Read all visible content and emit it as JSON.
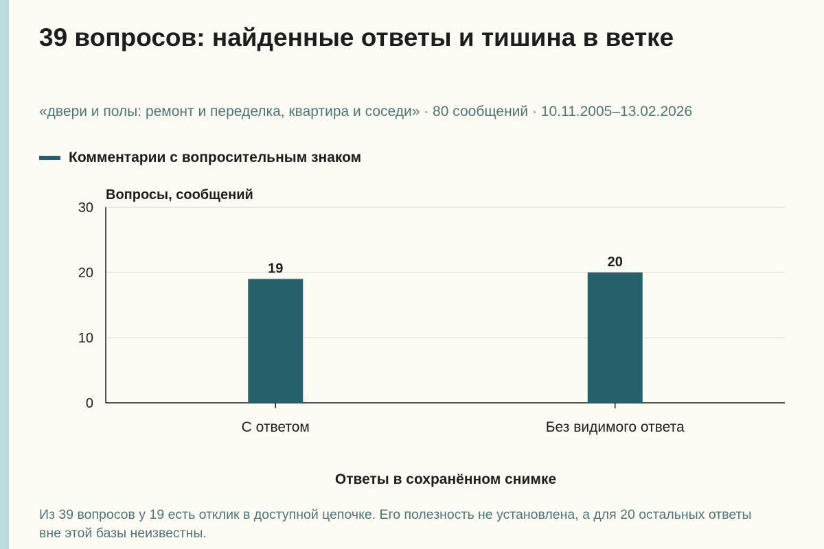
{
  "title": "39 вопросов: найденные ответы и тишина в ветке",
  "subtitle": "«двери и полы: ремонт и переделка, квартира и соседи» · 80 сообщений · 10.11.2005–13.02.2026",
  "footnote": "Из 39 вопросов у 19 есть отклик в доступной цепочке. Его полезность не установлена, а для 20 остальных ответы вне этой базы неизвестны.",
  "colors": {
    "bar": "#26616b",
    "background": "#fdfcf4",
    "grid": "#d9d9d2",
    "axis": "#1d1d1d",
    "muted_text": "#4d7477",
    "side_strip": "#bcdcdc"
  },
  "chart_data": {
    "type": "bar",
    "categories": [
      "С ответом",
      "Без видимого ответа"
    ],
    "series": [
      {
        "name": "Комментарии с вопросительным знаком",
        "values": [
          19,
          20
        ]
      }
    ],
    "data_labels": [
      "19",
      "20"
    ],
    "ylabel": "Вопросы, сообщений",
    "xlabel": "Ответы в сохранённом снимке",
    "ylim": [
      0,
      30
    ],
    "yticks": [
      0,
      10,
      20,
      30
    ],
    "grid": true,
    "legend": "top-left"
  }
}
